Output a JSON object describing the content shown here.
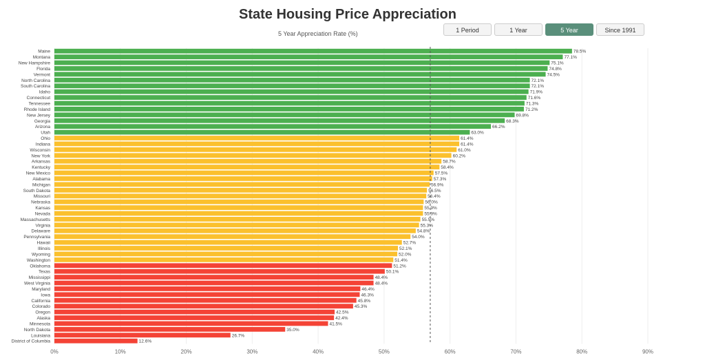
{
  "title": "State Housing Price Appreciation",
  "subtitle": "5 Year Appreciation Rate (%)",
  "buttons": [
    {
      "label": "1 Period",
      "active": false
    },
    {
      "label": "1 Year",
      "active": false
    },
    {
      "label": "5 Year",
      "active": true
    },
    {
      "label": "Since 1991",
      "active": false
    }
  ],
  "colors": {
    "high": "#4caf50",
    "mid": "#fbc02d",
    "low": "#f44336",
    "active_button": "#5a8f7b",
    "grid": "#eeeeee"
  },
  "chart_data": {
    "type": "bar",
    "orientation": "horizontal",
    "title": "State Housing Price Appreciation",
    "xlabel": "5 Year Appreciation Rate (%)",
    "xlim": [
      0,
      90
    ],
    "xticks": [
      0,
      10,
      20,
      30,
      40,
      50,
      60,
      70,
      80,
      90
    ],
    "xtick_suffix": "%",
    "grid": true,
    "reference_line": 57,
    "categories": [
      "Maine",
      "Montana",
      "New Hampshire",
      "Florida",
      "Vermont",
      "North Carolina",
      "South Carolina",
      "Idaho",
      "Connecticut",
      "Tennessee",
      "Rhode Island",
      "New Jersey",
      "Georgia",
      "Arizona",
      "Utah",
      "Ohio",
      "Indiana",
      "Wisconsin",
      "New York",
      "Arkansas",
      "Kentucky",
      "New Mexico",
      "Alabama",
      "Michigan",
      "South Dakota",
      "Missouri",
      "Nebraska",
      "Kansas",
      "Nevada",
      "Massachusetts",
      "Virginia",
      "Delaware",
      "Pennsylvania",
      "Hawaii",
      "Illinois",
      "Wyoming",
      "Washington",
      "Oklahoma",
      "Texas",
      "Mississippi",
      "West Virginia",
      "Maryland",
      "Iowa",
      "California",
      "Colorado",
      "Oregon",
      "Alaska",
      "Minnesota",
      "North Dakota",
      "Louisiana",
      "District of Columbia"
    ],
    "values": [
      78.5,
      77.1,
      75.1,
      74.8,
      74.5,
      72.1,
      72.1,
      71.9,
      71.6,
      71.3,
      71.2,
      69.8,
      68.3,
      66.2,
      63.0,
      61.4,
      61.4,
      61.0,
      60.2,
      58.7,
      58.4,
      57.5,
      57.3,
      56.9,
      56.5,
      56.4,
      56.0,
      55.9,
      55.9,
      55.5,
      55.3,
      54.8,
      54.0,
      52.7,
      52.1,
      52.0,
      51.4,
      51.2,
      50.1,
      48.4,
      48.4,
      46.4,
      46.3,
      45.8,
      45.3,
      42.5,
      42.4,
      41.5,
      35.0,
      26.7,
      12.6
    ],
    "labels": [
      "78.5%",
      "77.1%",
      "75.1%",
      "74.8%",
      "74.5%",
      "72.1%",
      "72.1%",
      "71.9%",
      "71.6%",
      "71.3%",
      "71.2%",
      "69.8%",
      "68.3%",
      "66.2%",
      "63.0%",
      "61.4%",
      "61.4%",
      "61.0%",
      "60.2%",
      "58.7%",
      "58.4%",
      "57.5%",
      "57.3%",
      "56.9%",
      "56.5%",
      "56.4%",
      "56.0%",
      "55.9%",
      "55.9%",
      "55.5%",
      "55.3%",
      "54.8%",
      "54.0%",
      "52.7%",
      "52.1%",
      "52.0%",
      "51.4%",
      "51.2%",
      "50.1%",
      "48.4%",
      "48.4%",
      "46.4%",
      "46.3%",
      "45.8%",
      "45.3%",
      "42.5%",
      "42.4%",
      "41.5%",
      "35.0%",
      "26.7%",
      "12.6%"
    ],
    "tiers": [
      "high",
      "high",
      "high",
      "high",
      "high",
      "high",
      "high",
      "high",
      "high",
      "high",
      "high",
      "high",
      "high",
      "high",
      "high",
      "mid",
      "mid",
      "mid",
      "mid",
      "mid",
      "mid",
      "mid",
      "mid",
      "mid",
      "mid",
      "mid",
      "mid",
      "mid",
      "mid",
      "mid",
      "mid",
      "mid",
      "mid",
      "mid",
      "mid",
      "mid",
      "mid",
      "low",
      "low",
      "low",
      "low",
      "low",
      "low",
      "low",
      "low",
      "low",
      "low",
      "low",
      "low",
      "low",
      "low"
    ]
  }
}
